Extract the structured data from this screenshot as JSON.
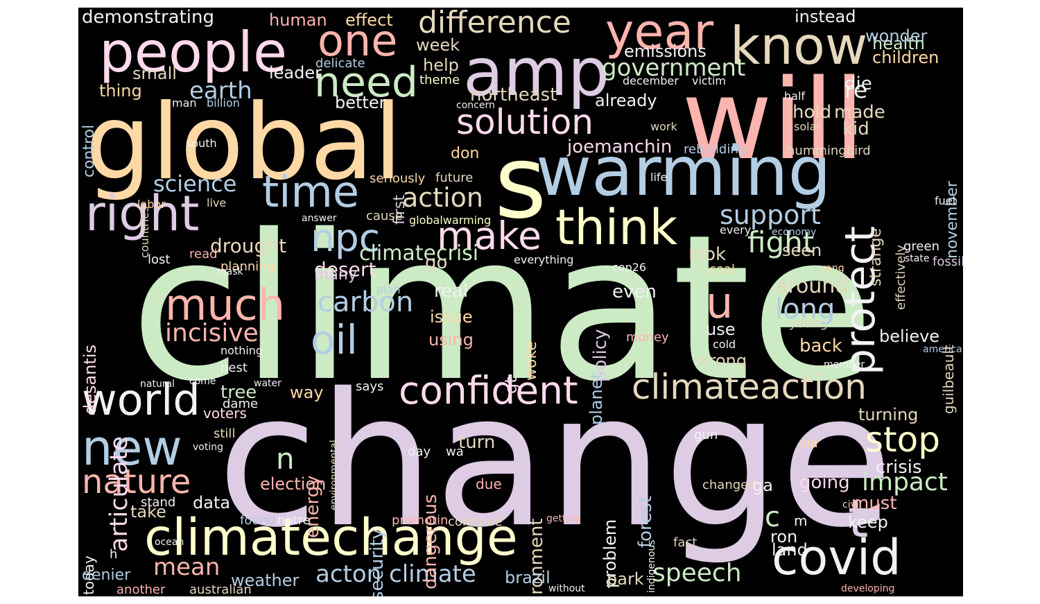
{
  "palette": {
    "green": "#ccebc5",
    "lavender": "#decbe4",
    "red": "#fbb4ae",
    "blue": "#b3cde3",
    "orange": "#fed9a6",
    "yellow": "#ffffcc",
    "tan": "#e5d8bd",
    "pink": "#fddaec",
    "gray": "#f2f2f2"
  },
  "words": [
    {
      "t": "climate",
      "c": "green"
    },
    {
      "t": "change",
      "c": "lavender"
    },
    {
      "t": "will",
      "c": "red"
    },
    {
      "t": "global",
      "c": "orange"
    },
    {
      "t": "s",
      "c": "yellow"
    },
    {
      "t": "warming",
      "c": "blue"
    },
    {
      "t": "amp",
      "c": "lavender"
    },
    {
      "t": "people",
      "c": "pink"
    },
    {
      "t": "year",
      "c": "red"
    },
    {
      "t": "know",
      "c": "tan"
    },
    {
      "t": "one",
      "c": "red"
    },
    {
      "t": "climatechange",
      "c": "yellow"
    },
    {
      "t": "think",
      "c": "yellow"
    },
    {
      "t": "right",
      "c": "lavender"
    },
    {
      "t": "time",
      "c": "blue"
    },
    {
      "t": "solution",
      "c": "pink"
    },
    {
      "t": "difference",
      "c": "tan"
    },
    {
      "t": "need",
      "c": "green"
    },
    {
      "t": "protect",
      "c": "gray"
    },
    {
      "t": "make",
      "c": "pink"
    },
    {
      "t": "much",
      "c": "red"
    },
    {
      "t": "npc",
      "c": "blue"
    },
    {
      "t": "world",
      "c": "gray"
    },
    {
      "t": "confident",
      "c": "pink"
    },
    {
      "t": "climateaction",
      "c": "tan"
    },
    {
      "t": "new",
      "c": "blue"
    },
    {
      "t": "stop",
      "c": "yellow"
    },
    {
      "t": "nature",
      "c": "red"
    },
    {
      "t": "covid",
      "c": "gray"
    },
    {
      "t": "oil",
      "c": "blue"
    },
    {
      "t": "u",
      "c": "red"
    },
    {
      "t": "t",
      "c": "lavender"
    },
    {
      "t": "incisive",
      "c": "red"
    },
    {
      "t": "carbon",
      "c": "blue"
    },
    {
      "t": "science",
      "c": "blue"
    },
    {
      "t": "action",
      "c": "tan"
    },
    {
      "t": "support",
      "c": "blue"
    },
    {
      "t": "fight",
      "c": "green"
    },
    {
      "t": "government",
      "c": "green"
    },
    {
      "t": "earth",
      "c": "blue"
    },
    {
      "t": "articulate",
      "c": "pink"
    },
    {
      "t": "acton climate",
      "c": "blue"
    },
    {
      "t": "speech",
      "c": "green"
    },
    {
      "t": "impact",
      "c": "green"
    },
    {
      "t": "long",
      "c": "blue"
    },
    {
      "t": "c",
      "c": "green"
    },
    {
      "t": "n",
      "c": "green"
    },
    {
      "t": "mean",
      "c": "red"
    },
    {
      "t": "re",
      "c": "gray"
    },
    {
      "t": "climatecrisi",
      "c": "green"
    },
    {
      "t": "drought",
      "c": "tan"
    },
    {
      "t": "desert",
      "c": "pink"
    },
    {
      "t": "around",
      "c": "tan"
    },
    {
      "t": "emissions",
      "c": "gray"
    },
    {
      "t": "northeast",
      "c": "tan"
    },
    {
      "t": "joemanchin",
      "c": "pink"
    },
    {
      "t": "die",
      "c": "gray"
    },
    {
      "t": "hold",
      "c": "tan"
    },
    {
      "t": "made",
      "c": "tan"
    },
    {
      "t": "kid",
      "c": "tan"
    },
    {
      "t": "health",
      "c": "green"
    },
    {
      "t": "wonder",
      "c": "blue"
    },
    {
      "t": "children",
      "c": "orange"
    },
    {
      "t": "instead",
      "c": "gray"
    },
    {
      "t": "already",
      "c": "gray"
    },
    {
      "t": "better",
      "c": "gray"
    },
    {
      "t": "help",
      "c": "tan"
    },
    {
      "t": "week",
      "c": "tan"
    },
    {
      "t": "small",
      "c": "tan"
    },
    {
      "t": "thing",
      "c": "orange"
    },
    {
      "t": "leader",
      "c": "gray"
    },
    {
      "t": "demonstrating",
      "c": "gray"
    },
    {
      "t": "human",
      "c": "red"
    },
    {
      "t": "effect",
      "c": "orange"
    },
    {
      "t": "control",
      "c": "blue"
    },
    {
      "t": "delicate",
      "c": "blue"
    },
    {
      "t": "theme",
      "c": "yellow"
    },
    {
      "t": "december",
      "c": "gray"
    },
    {
      "t": "victim",
      "c": "gray"
    },
    {
      "t": "half",
      "c": "gray"
    },
    {
      "t": "concern",
      "c": "gray"
    },
    {
      "t": "work",
      "c": "tan"
    },
    {
      "t": "solar",
      "c": "tan"
    },
    {
      "t": "man",
      "c": "gray"
    },
    {
      "t": "billion",
      "c": "blue"
    },
    {
      "t": "first",
      "c": "lavender"
    },
    {
      "t": "don",
      "c": "orange"
    },
    {
      "t": "rebuilding",
      "c": "blue"
    },
    {
      "t": "hummingbird",
      "c": "tan"
    },
    {
      "t": "november",
      "c": "blue"
    },
    {
      "t": "strange",
      "c": "tan"
    },
    {
      "t": "effectively",
      "c": "tan"
    },
    {
      "t": "seriously",
      "c": "orange"
    },
    {
      "t": "future",
      "c": "tan"
    },
    {
      "t": "life",
      "c": "gray"
    },
    {
      "t": "south",
      "c": "gray"
    },
    {
      "t": "countries",
      "c": "tan"
    },
    {
      "t": "labor",
      "c": "orange"
    },
    {
      "t": "live",
      "c": "tan"
    },
    {
      "t": "cause",
      "c": "tan"
    },
    {
      "t": "globalwarming",
      "c": "yellow"
    },
    {
      "t": "answer",
      "c": "gray"
    },
    {
      "t": "fuel",
      "c": "gray"
    },
    {
      "t": "every",
      "c": "gray"
    },
    {
      "t": "economy",
      "c": "blue"
    },
    {
      "t": "green",
      "c": "gray"
    },
    {
      "t": "state",
      "c": "gray"
    },
    {
      "t": "desantis",
      "c": "pink"
    },
    {
      "t": "lost",
      "c": "gray"
    },
    {
      "t": "read",
      "c": "red"
    },
    {
      "t": "planning",
      "c": "orange"
    },
    {
      "t": "go",
      "c": "tan"
    },
    {
      "t": "everything",
      "c": "gray"
    },
    {
      "t": "policy",
      "c": "lavender"
    },
    {
      "t": "cop26",
      "c": "gray"
    },
    {
      "t": "look",
      "c": "tan"
    },
    {
      "t": "coal",
      "c": "orange"
    },
    {
      "t": "seen",
      "c": "tan"
    },
    {
      "t": "fossil",
      "c": "lavender"
    },
    {
      "t": "yang",
      "c": "orange"
    },
    {
      "t": "guilbeault",
      "c": "tan"
    },
    {
      "t": "many",
      "c": "lavender"
    },
    {
      "t": "mask",
      "c": "gray"
    },
    {
      "t": "plan",
      "c": "blue"
    },
    {
      "t": "real",
      "c": "gray"
    },
    {
      "t": "even",
      "c": "gray"
    },
    {
      "t": "issue",
      "c": "orange"
    },
    {
      "t": "using",
      "c": "red"
    },
    {
      "t": "woke",
      "c": "orange"
    },
    {
      "t": "planet",
      "c": "blue"
    },
    {
      "t": "money",
      "c": "red"
    },
    {
      "t": "use",
      "c": "gray"
    },
    {
      "t": "young",
      "c": "tan"
    },
    {
      "t": "believe",
      "c": "gray"
    },
    {
      "t": "back",
      "c": "orange"
    },
    {
      "t": "america",
      "c": "blue"
    },
    {
      "t": "cold",
      "c": "gray"
    },
    {
      "t": "wrong",
      "c": "tan"
    },
    {
      "t": "nothing",
      "c": "gray"
    },
    {
      "t": "gt",
      "c": "pink"
    },
    {
      "t": "nest",
      "c": "gray"
    },
    {
      "t": "member",
      "c": "gray"
    },
    {
      "t": "come",
      "c": "gray"
    },
    {
      "t": "natural",
      "c": "gray"
    },
    {
      "t": "water",
      "c": "gray"
    },
    {
      "t": "voters",
      "c": "pink"
    },
    {
      "t": "tree",
      "c": "green"
    },
    {
      "t": "way",
      "c": "orange"
    },
    {
      "t": "says",
      "c": "gray"
    },
    {
      "t": "dame",
      "c": "gray"
    },
    {
      "t": "environmental",
      "c": "tan"
    },
    {
      "t": "turning",
      "c": "tan"
    },
    {
      "t": "crisis",
      "c": "gray"
    },
    {
      "t": "still",
      "c": "tan"
    },
    {
      "t": "voting",
      "c": "gray"
    },
    {
      "t": "day",
      "c": "gray"
    },
    {
      "t": "dangerous",
      "c": "red"
    },
    {
      "t": "wa",
      "c": "gray"
    },
    {
      "t": "turn",
      "c": "tan"
    },
    {
      "t": "energy",
      "c": "red"
    },
    {
      "t": "environment",
      "c": "tan"
    },
    {
      "t": "forest",
      "c": "blue"
    },
    {
      "t": "gun",
      "c": "gray"
    },
    {
      "t": "via",
      "c": "orange"
    },
    {
      "t": "going",
      "c": "pink"
    },
    {
      "t": "election",
      "c": "red"
    },
    {
      "t": "due",
      "c": "red"
    },
    {
      "t": "changed",
      "c": "tan"
    },
    {
      "t": "ga",
      "c": "gray"
    },
    {
      "t": "civil",
      "c": "orange"
    },
    {
      "t": "must",
      "c": "red"
    },
    {
      "t": "stand",
      "c": "gray"
    },
    {
      "t": "data",
      "c": "gray"
    },
    {
      "t": "security",
      "c": "blue"
    },
    {
      "t": "problem",
      "c": "gray"
    },
    {
      "t": "indigenous",
      "c": "gray"
    },
    {
      "t": "take",
      "c": "tan"
    },
    {
      "t": "today",
      "c": "gray"
    },
    {
      "t": "found",
      "c": "blue"
    },
    {
      "t": "notre",
      "c": "gray"
    },
    {
      "t": "promotin",
      "c": "red"
    },
    {
      "t": "continue",
      "c": "tan"
    },
    {
      "t": "getting",
      "c": "red"
    },
    {
      "t": "m",
      "c": "gray"
    },
    {
      "t": "keep",
      "c": "gray"
    },
    {
      "t": "ron",
      "c": "gray"
    },
    {
      "t": "land",
      "c": "gray"
    },
    {
      "t": "h",
      "c": "gray"
    },
    {
      "t": "ocean",
      "c": "gray"
    },
    {
      "t": "fact",
      "c": "tan"
    },
    {
      "t": "denier",
      "c": "blue"
    },
    {
      "t": "weather",
      "c": "blue"
    },
    {
      "t": "brazil",
      "c": "blue"
    },
    {
      "t": "park",
      "c": "tan"
    },
    {
      "t": "another",
      "c": "red"
    },
    {
      "t": "australian",
      "c": "tan"
    },
    {
      "t": "without",
      "c": "gray"
    },
    {
      "t": "developing",
      "c": "red"
    }
  ]
}
